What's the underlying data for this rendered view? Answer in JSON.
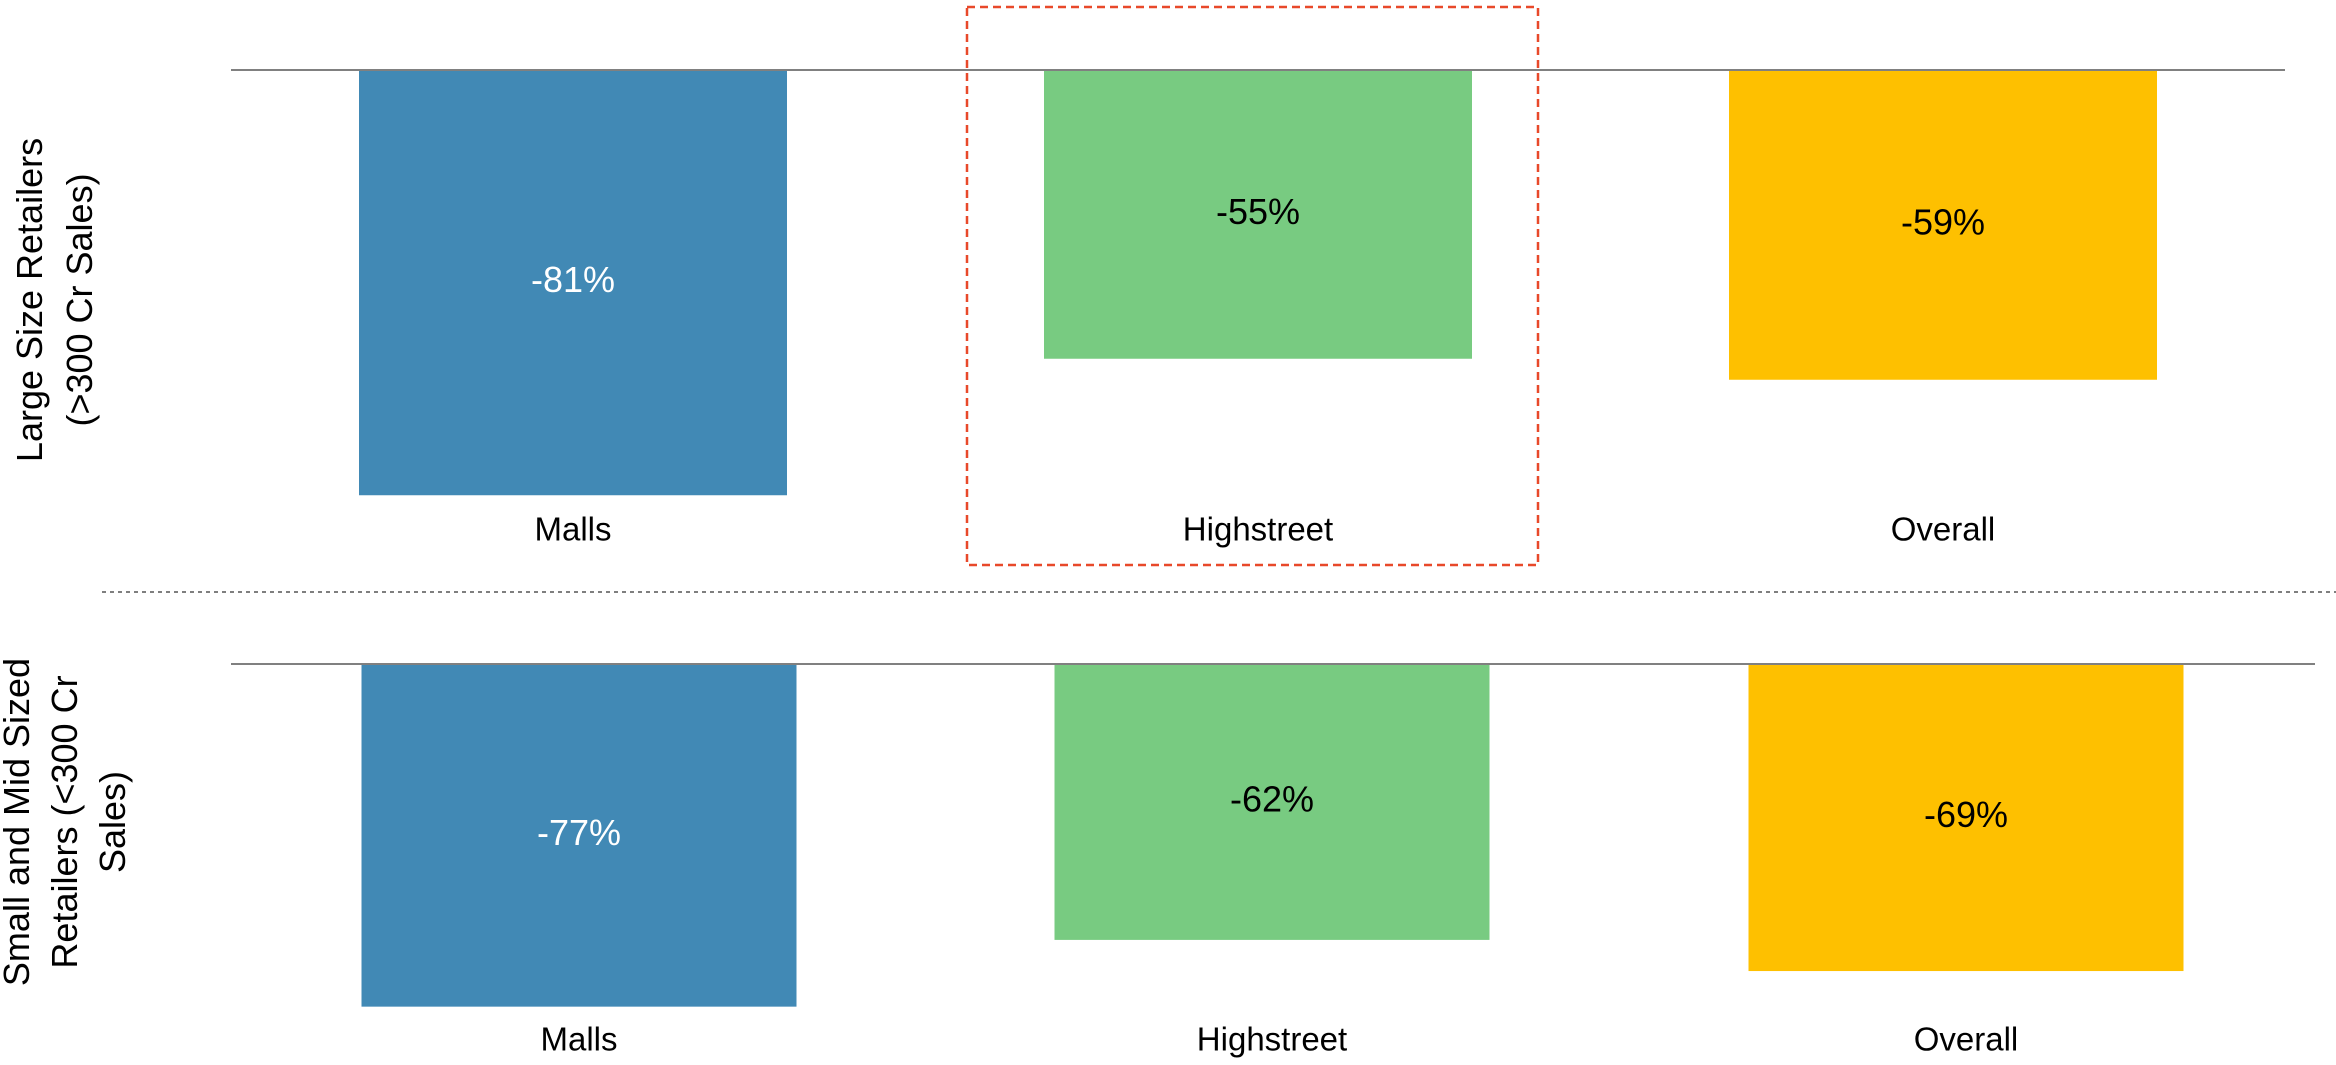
{
  "colors": {
    "Malls": "#4189B5",
    "Highstreet": "#78CB81",
    "Overall": "#FEC000",
    "baseline": "#808080",
    "divider": "#7F7F7F",
    "highlight": "#E8492A",
    "label_on_dark": "#FFFFFF",
    "label_on_light": "#000000"
  },
  "chart_data": [
    {
      "type": "bar",
      "ylabel": [
        "Large Size Retailers",
        "(>300 Cr Sales)"
      ],
      "categories": [
        "Malls",
        "Highstreet",
        "Overall"
      ],
      "values": [
        -81,
        -55,
        -59
      ],
      "data_labels": [
        "-81%",
        "-55%",
        "-59%"
      ],
      "ylim": [
        -100,
        0
      ],
      "highlighted_category": "Highstreet"
    },
    {
      "type": "bar",
      "ylabel": [
        "Small and Mid Sized",
        "Retailers (<300 Cr",
        "Sales)"
      ],
      "categories": [
        "Malls",
        "Highstreet",
        "Overall"
      ],
      "values": [
        -77,
        -62,
        -69
      ],
      "data_labels": [
        "-77%",
        "-62%",
        "-69%"
      ],
      "ylim": [
        -100,
        0
      ]
    }
  ]
}
